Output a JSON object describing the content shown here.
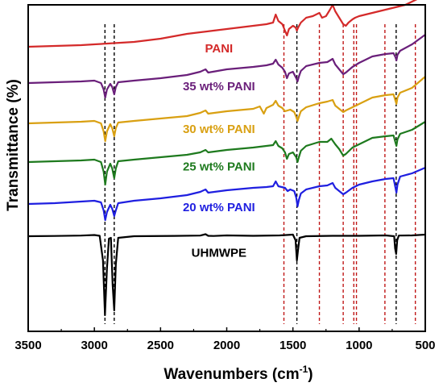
{
  "chart_data": {
    "type": "line",
    "xlabel": "Wavenumbers (cm",
    "xlabel_sup": "-1",
    "xlabel_close": ")",
    "ylabel": "Transmittance (%)",
    "xlim": [
      3500,
      500
    ],
    "x_ticks": [
      3500,
      3000,
      2500,
      2000,
      1500,
      1000,
      500
    ],
    "y_ticks_shown": false,
    "grid": false,
    "legend": "inline labels",
    "series": [
      {
        "name": "UHMWPE",
        "color": "#000000",
        "offset": 0,
        "label_x": 2150,
        "points": [
          [
            3500,
            0
          ],
          [
            3300,
            0.3
          ],
          [
            3100,
            0.8
          ],
          [
            3000,
            1.5
          ],
          [
            2960,
            0.5
          ],
          [
            2935,
            -30
          ],
          [
            2920,
            -98
          ],
          [
            2905,
            -40
          ],
          [
            2890,
            -3
          ],
          [
            2875,
            -2
          ],
          [
            2862,
            -60
          ],
          [
            2850,
            -92
          ],
          [
            2838,
            -35
          ],
          [
            2820,
            -2
          ],
          [
            2700,
            0
          ],
          [
            2400,
            0.4
          ],
          [
            2200,
            0.8
          ],
          [
            2160,
            2.5
          ],
          [
            2140,
            0.5
          ],
          [
            2100,
            0.3
          ],
          [
            2000,
            1
          ],
          [
            1800,
            0.5
          ],
          [
            1600,
            1
          ],
          [
            1500,
            2
          ],
          [
            1480,
            -5
          ],
          [
            1470,
            -30
          ],
          [
            1462,
            -18
          ],
          [
            1450,
            -2
          ],
          [
            1400,
            0
          ],
          [
            1200,
            0.5
          ],
          [
            1000,
            0.5
          ],
          [
            800,
            1
          ],
          [
            735,
            0
          ],
          [
            728,
            -15
          ],
          [
            720,
            -22
          ],
          [
            712,
            -5
          ],
          [
            700,
            0.8
          ],
          [
            600,
            1
          ],
          [
            500,
            2
          ]
        ]
      },
      {
        "name": "20 wt% PANI",
        "color": "#1f1fe0",
        "offset": 40,
        "label_x": 2150,
        "points": [
          [
            3500,
            0
          ],
          [
            3300,
            1
          ],
          [
            3100,
            3
          ],
          [
            3000,
            4
          ],
          [
            2950,
            2
          ],
          [
            2930,
            -8
          ],
          [
            2918,
            -20
          ],
          [
            2905,
            -10
          ],
          [
            2880,
            -1
          ],
          [
            2865,
            -6
          ],
          [
            2850,
            -15
          ],
          [
            2838,
            -8
          ],
          [
            2820,
            1
          ],
          [
            2700,
            4
          ],
          [
            2500,
            7
          ],
          [
            2300,
            11
          ],
          [
            2200,
            15
          ],
          [
            2160,
            18
          ],
          [
            2140,
            14
          ],
          [
            2000,
            17
          ],
          [
            1800,
            20
          ],
          [
            1700,
            21
          ],
          [
            1650,
            22
          ],
          [
            1630,
            28
          ],
          [
            1610,
            22
          ],
          [
            1560,
            20
          ],
          [
            1540,
            16
          ],
          [
            1520,
            18
          ],
          [
            1490,
            16
          ],
          [
            1475,
            8
          ],
          [
            1465,
            -3
          ],
          [
            1455,
            5
          ],
          [
            1440,
            13
          ],
          [
            1400,
            18
          ],
          [
            1300,
            22
          ],
          [
            1240,
            23
          ],
          [
            1200,
            26
          ],
          [
            1180,
            20
          ],
          [
            1150,
            16
          ],
          [
            1120,
            12
          ],
          [
            1100,
            14
          ],
          [
            1050,
            20
          ],
          [
            1000,
            24
          ],
          [
            900,
            28
          ],
          [
            800,
            31
          ],
          [
            740,
            32
          ],
          [
            725,
            20
          ],
          [
            718,
            14
          ],
          [
            710,
            24
          ],
          [
            690,
            34
          ],
          [
            600,
            38
          ],
          [
            500,
            45
          ]
        ]
      },
      {
        "name": "25 wt% PANI",
        "color": "#1e7a1e",
        "offset": 92,
        "label_x": 2150,
        "points": [
          [
            3500,
            0
          ],
          [
            3300,
            1
          ],
          [
            3100,
            2
          ],
          [
            3000,
            3
          ],
          [
            2950,
            0
          ],
          [
            2930,
            -12
          ],
          [
            2918,
            -28
          ],
          [
            2905,
            -12
          ],
          [
            2880,
            -2
          ],
          [
            2865,
            -8
          ],
          [
            2850,
            -20
          ],
          [
            2838,
            -8
          ],
          [
            2820,
            1
          ],
          [
            2700,
            3
          ],
          [
            2500,
            6
          ],
          [
            2300,
            9
          ],
          [
            2200,
            12
          ],
          [
            2160,
            15
          ],
          [
            2140,
            12
          ],
          [
            2000,
            15
          ],
          [
            1800,
            18
          ],
          [
            1700,
            20
          ],
          [
            1650,
            21
          ],
          [
            1630,
            26
          ],
          [
            1610,
            20
          ],
          [
            1580,
            17
          ],
          [
            1560,
            12
          ],
          [
            1545,
            4
          ],
          [
            1530,
            10
          ],
          [
            1500,
            12
          ],
          [
            1475,
            6
          ],
          [
            1465,
            0
          ],
          [
            1455,
            6
          ],
          [
            1440,
            14
          ],
          [
            1400,
            20
          ],
          [
            1300,
            25
          ],
          [
            1240,
            25
          ],
          [
            1210,
            29
          ],
          [
            1180,
            22
          ],
          [
            1150,
            16
          ],
          [
            1120,
            8
          ],
          [
            1100,
            10
          ],
          [
            1050,
            18
          ],
          [
            1000,
            22
          ],
          [
            900,
            30
          ],
          [
            800,
            32
          ],
          [
            740,
            33
          ],
          [
            725,
            24
          ],
          [
            718,
            20
          ],
          [
            710,
            28
          ],
          [
            690,
            35
          ],
          [
            600,
            40
          ],
          [
            500,
            50
          ]
        ]
      },
      {
        "name": "30 wt% PANI",
        "color": "#d9a012",
        "offset": 140,
        "label_x": 2150,
        "points": [
          [
            3500,
            0
          ],
          [
            3300,
            1
          ],
          [
            3100,
            2
          ],
          [
            3000,
            3
          ],
          [
            2950,
            0
          ],
          [
            2930,
            -10
          ],
          [
            2918,
            -22
          ],
          [
            2905,
            -10
          ],
          [
            2880,
            -1
          ],
          [
            2865,
            -6
          ],
          [
            2850,
            -16
          ],
          [
            2838,
            -6
          ],
          [
            2820,
            1
          ],
          [
            2700,
            3
          ],
          [
            2500,
            6
          ],
          [
            2300,
            9
          ],
          [
            2200,
            13
          ],
          [
            2160,
            16
          ],
          [
            2140,
            12
          ],
          [
            2000,
            15
          ],
          [
            1800,
            18
          ],
          [
            1750,
            21
          ],
          [
            1720,
            12
          ],
          [
            1700,
            19
          ],
          [
            1650,
            23
          ],
          [
            1630,
            28
          ],
          [
            1610,
            22
          ],
          [
            1580,
            19
          ],
          [
            1560,
            15
          ],
          [
            1540,
            16
          ],
          [
            1520,
            17
          ],
          [
            1490,
            14
          ],
          [
            1475,
            8
          ],
          [
            1465,
            3
          ],
          [
            1455,
            8
          ],
          [
            1440,
            15
          ],
          [
            1400,
            20
          ],
          [
            1300,
            25
          ],
          [
            1240,
            27
          ],
          [
            1200,
            29
          ],
          [
            1180,
            22
          ],
          [
            1150,
            18
          ],
          [
            1120,
            14
          ],
          [
            1100,
            16
          ],
          [
            1050,
            20
          ],
          [
            1000,
            24
          ],
          [
            900,
            32
          ],
          [
            800,
            35
          ],
          [
            740,
            36
          ],
          [
            725,
            28
          ],
          [
            718,
            24
          ],
          [
            710,
            32
          ],
          [
            690,
            38
          ],
          [
            600,
            44
          ],
          [
            500,
            58
          ]
        ]
      },
      {
        "name": "35 wt% PANI",
        "color": "#6a1f7a",
        "offset": 190,
        "label_x": 2150,
        "points": [
          [
            3500,
            0
          ],
          [
            3300,
            1
          ],
          [
            3100,
            2
          ],
          [
            3000,
            3
          ],
          [
            2950,
            0
          ],
          [
            2930,
            -8
          ],
          [
            2918,
            -18
          ],
          [
            2905,
            -8
          ],
          [
            2880,
            -1
          ],
          [
            2865,
            -5
          ],
          [
            2850,
            -14
          ],
          [
            2838,
            -5
          ],
          [
            2820,
            1
          ],
          [
            2700,
            3
          ],
          [
            2500,
            6
          ],
          [
            2300,
            10
          ],
          [
            2200,
            14
          ],
          [
            2160,
            17
          ],
          [
            2140,
            13
          ],
          [
            2000,
            17
          ],
          [
            1800,
            20
          ],
          [
            1700,
            22
          ],
          [
            1650,
            24
          ],
          [
            1630,
            29
          ],
          [
            1610,
            23
          ],
          [
            1580,
            19
          ],
          [
            1560,
            14
          ],
          [
            1545,
            6
          ],
          [
            1530,
            12
          ],
          [
            1500,
            14
          ],
          [
            1475,
            6
          ],
          [
            1465,
            2
          ],
          [
            1455,
            8
          ],
          [
            1440,
            15
          ],
          [
            1400,
            21
          ],
          [
            1300,
            25
          ],
          [
            1240,
            26
          ],
          [
            1200,
            30
          ],
          [
            1180,
            23
          ],
          [
            1150,
            17
          ],
          [
            1120,
            11
          ],
          [
            1100,
            13
          ],
          [
            1050,
            20
          ],
          [
            1000,
            25
          ],
          [
            900,
            33
          ],
          [
            800,
            36
          ],
          [
            740,
            37
          ],
          [
            725,
            32
          ],
          [
            718,
            28
          ],
          [
            710,
            35
          ],
          [
            690,
            40
          ],
          [
            600,
            48
          ],
          [
            500,
            60
          ]
        ]
      },
      {
        "name": "PANI",
        "color": "#d42a2a",
        "offset": 235,
        "label_x": 2150,
        "points": [
          [
            3500,
            0
          ],
          [
            3400,
            0.5
          ],
          [
            3300,
            1
          ],
          [
            3200,
            1.5
          ],
          [
            3100,
            2
          ],
          [
            3000,
            3
          ],
          [
            2900,
            4
          ],
          [
            2800,
            5
          ],
          [
            2700,
            6
          ],
          [
            2600,
            8
          ],
          [
            2500,
            10
          ],
          [
            2400,
            13
          ],
          [
            2300,
            16
          ],
          [
            2200,
            18
          ],
          [
            2100,
            20
          ],
          [
            2000,
            22
          ],
          [
            1900,
            24
          ],
          [
            1800,
            26
          ],
          [
            1700,
            28
          ],
          [
            1650,
            30
          ],
          [
            1630,
            40
          ],
          [
            1610,
            32
          ],
          [
            1580,
            28
          ],
          [
            1560,
            20
          ],
          [
            1545,
            14
          ],
          [
            1530,
            22
          ],
          [
            1500,
            26
          ],
          [
            1480,
            24
          ],
          [
            1470,
            20
          ],
          [
            1460,
            24
          ],
          [
            1440,
            30
          ],
          [
            1400,
            36
          ],
          [
            1350,
            38
          ],
          [
            1300,
            42
          ],
          [
            1280,
            36
          ],
          [
            1250,
            38
          ],
          [
            1220,
            46
          ],
          [
            1200,
            52
          ],
          [
            1180,
            44
          ],
          [
            1150,
            36
          ],
          [
            1120,
            28
          ],
          [
            1100,
            26
          ],
          [
            1080,
            30
          ],
          [
            1050,
            34
          ],
          [
            1030,
            36
          ],
          [
            1000,
            38
          ],
          [
            950,
            40
          ],
          [
            900,
            42
          ],
          [
            850,
            44
          ],
          [
            800,
            46
          ],
          [
            750,
            48
          ],
          [
            700,
            50
          ],
          [
            650,
            52
          ],
          [
            600,
            56
          ],
          [
            550,
            60
          ],
          [
            500,
            62
          ]
        ]
      }
    ],
    "reference_lines": [
      {
        "x": 2920,
        "color": "#000000"
      },
      {
        "x": 2850,
        "color": "#000000"
      },
      {
        "x": 1568,
        "color": "#c01818"
      },
      {
        "x": 1470,
        "color": "#000000"
      },
      {
        "x": 1300,
        "color": "#c01818"
      },
      {
        "x": 1120,
        "color": "#c01818"
      },
      {
        "x": 1040,
        "color": "#c01818"
      },
      {
        "x": 1020,
        "color": "#c01818"
      },
      {
        "x": 805,
        "color": "#c01818"
      },
      {
        "x": 720,
        "color": "#000000"
      },
      {
        "x": 575,
        "color": "#c01818"
      }
    ]
  }
}
